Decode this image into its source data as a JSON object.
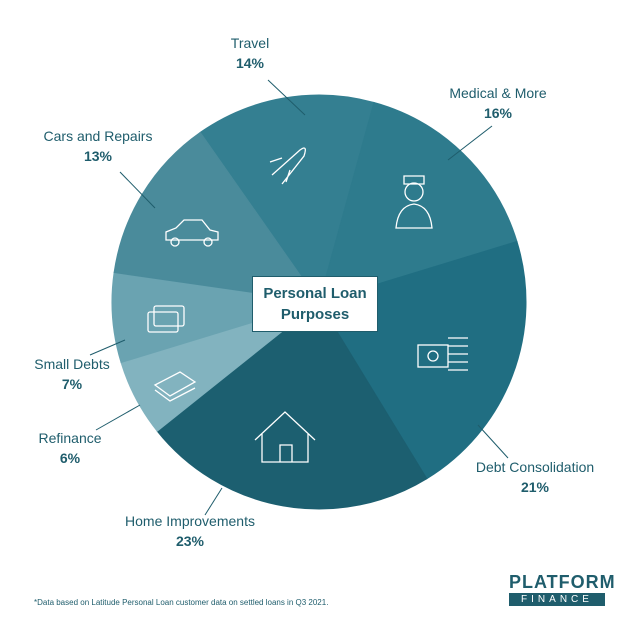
{
  "chart_data": {
    "type": "pie",
    "title": "Personal Loan Purposes",
    "categories": [
      "Travel",
      "Medical & More",
      "Debt Consolidation",
      "Home Improvements",
      "Refinance",
      "Small Debts",
      "Cars and Repairs"
    ],
    "values": [
      14,
      16,
      21,
      23,
      6,
      7,
      13
    ],
    "value_labels": [
      "14%",
      "16%",
      "21%",
      "23%",
      "6%",
      "7%",
      "13%"
    ],
    "colors": [
      "#347f91",
      "#2e7b8d",
      "#206e82",
      "#1c5f70",
      "#82b3bf",
      "#6aa3b1",
      "#4a8b9b"
    ],
    "footnote": "*Data based on Latitude Personal Loan customer data on settled loans in Q3 2021.",
    "logo": {
      "name": "PLATFORM",
      "sub": "FINANCE"
    }
  }
}
